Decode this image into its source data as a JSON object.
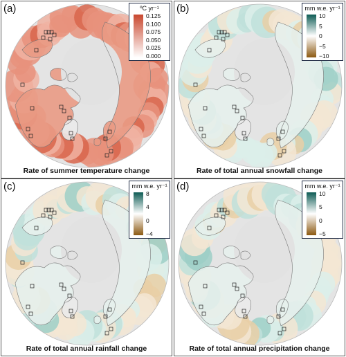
{
  "panels": [
    {
      "letter": "(a)",
      "caption": "Rate of summer temperature change",
      "unit": "ºC yr⁻¹",
      "ticks": [
        "0.125",
        "0.100",
        "0.075",
        "0.050",
        "0.025",
        "0.000"
      ],
      "colors": [
        "#c9482f",
        "#ffffff"
      ]
    },
    {
      "letter": "(b)",
      "caption": "Rate of total annual snowfall change",
      "unit": "mm w.e. yr⁻¹",
      "ticks": [
        "10",
        "5",
        "0",
        "−5",
        "−10"
      ],
      "colors": [
        "#0f5c55",
        "#ffffff",
        "#8c5a12"
      ]
    },
    {
      "letter": "(c)",
      "caption": "Rate of total annual rainfall change",
      "unit": "mm w.e. yr⁻¹",
      "ticks": [
        "8",
        "4",
        "0",
        "−4"
      ],
      "colors": [
        "#0f5c55",
        "#ffffff",
        "#8c5a12"
      ]
    },
    {
      "letter": "(d)",
      "caption": "Rate of total annual precipitation change",
      "unit": "mm w.e. yr⁻¹",
      "ticks": [
        "10",
        "5",
        "0",
        "−5"
      ],
      "colors": [
        "#0f5c55",
        "#ffffff",
        "#8c5a12"
      ]
    }
  ]
}
